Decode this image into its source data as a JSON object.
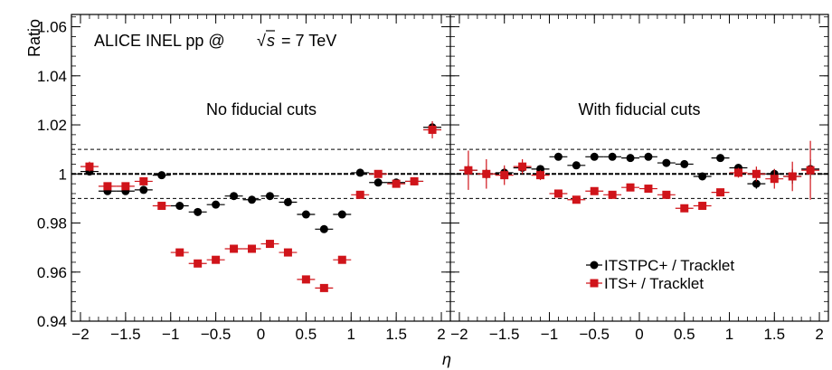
{
  "chart_data": {
    "type": "scatter",
    "header": {
      "text_before": "ALICE INEL pp @",
      "sqrt_symbol": "√",
      "sqrt_arg": "s",
      "text_after": "= 7 TeV"
    },
    "ylabel": "Ratio",
    "xlabel": "η",
    "ylim": [
      0.94,
      1.065
    ],
    "xlim": [
      -2.1,
      2.1
    ],
    "y_ticks": [
      0.94,
      0.96,
      0.98,
      1,
      1.02,
      1.04,
      1.06
    ],
    "y_tick_labels": [
      "0.94",
      "0.96",
      "0.98",
      "1",
      "1.02",
      "1.04",
      "1.06"
    ],
    "x_ticks": [
      -2,
      -1.5,
      -1,
      -0.5,
      0,
      0.5,
      1,
      1.5,
      2
    ],
    "x_tick_labels": [
      "−2",
      "−1.5",
      "−1",
      "−0.5",
      "0",
      "0.5",
      "1",
      "1.5",
      "2"
    ],
    "reference_line": 1.0,
    "band_lines": [
      0.99,
      1.01
    ],
    "grid": false,
    "legend": {
      "placement": "bottom-right of right panel",
      "entries": [
        {
          "label": "ITSTPC+ / Tracklet",
          "color": "#000000",
          "marker": "circle"
        },
        {
          "label": "ITS+ / Tracklet",
          "color": "#d0141a",
          "marker": "square"
        }
      ]
    },
    "panels": [
      {
        "label": "No fiducial cuts",
        "series": [
          {
            "name": "ITSTPC+ / Tracklet",
            "color": "#000000",
            "marker": "circle",
            "x": [
              -1.9,
              -1.7,
              -1.5,
              -1.3,
              -1.1,
              -0.9,
              -0.7,
              -0.5,
              -0.3,
              -0.1,
              0.1,
              0.3,
              0.5,
              0.7,
              0.9,
              1.1,
              1.3,
              1.5,
              1.7,
              1.9
            ],
            "y": [
              1.001,
              0.993,
              0.993,
              0.9935,
              0.9995,
              0.987,
              0.9845,
              0.9875,
              0.991,
              0.9895,
              0.991,
              0.9885,
              0.9835,
              0.9775,
              0.9835,
              1.0005,
              0.9965,
              0.9965,
              0.997,
              1.019
            ],
            "yerr": [
              0.0015,
              0.001,
              0.001,
              0.001,
              0.0008,
              0.0008,
              0.0008,
              0.0008,
              0.0008,
              0.0008,
              0.0008,
              0.0008,
              0.0008,
              0.0008,
              0.0008,
              0.0008,
              0.001,
              0.001,
              0.001,
              0.0015
            ]
          },
          {
            "name": "ITS+ / Tracklet",
            "color": "#d0141a",
            "marker": "square",
            "x": [
              -1.9,
              -1.7,
              -1.5,
              -1.3,
              -1.1,
              -0.9,
              -0.7,
              -0.5,
              -0.3,
              -0.1,
              0.1,
              0.3,
              0.5,
              0.7,
              0.9,
              1.1,
              1.3,
              1.5,
              1.7,
              1.9
            ],
            "y": [
              1.003,
              0.995,
              0.995,
              0.997,
              0.987,
              0.968,
              0.9635,
              0.965,
              0.9695,
              0.9695,
              0.9715,
              0.968,
              0.957,
              0.9535,
              0.965,
              0.9915,
              1.0,
              0.996,
              0.997,
              1.018
            ],
            "yerr": [
              0.002,
              0.001,
              0.001,
              0.001,
              0.0008,
              0.0008,
              0.0008,
              0.0008,
              0.0008,
              0.0008,
              0.0008,
              0.0008,
              0.0008,
              0.0008,
              0.0008,
              0.0008,
              0.001,
              0.001,
              0.001,
              0.0035
            ]
          }
        ]
      },
      {
        "label": "With fiducial cuts",
        "series": [
          {
            "name": "ITSTPC+ / Tracklet",
            "color": "#000000",
            "marker": "circle",
            "x": [
              -1.9,
              -1.7,
              -1.5,
              -1.3,
              -1.1,
              -0.9,
              -0.7,
              -0.5,
              -0.3,
              -0.1,
              0.1,
              0.3,
              0.5,
              0.7,
              0.9,
              1.1,
              1.3,
              1.5,
              1.7,
              1.9
            ],
            "y": [
              1.0015,
              1.0,
              1.0005,
              1.0025,
              1.002,
              1.007,
              1.0035,
              1.007,
              1.007,
              1.0065,
              1.007,
              1.0045,
              1.004,
              0.999,
              1.0065,
              1.0025,
              0.996,
              1.0,
              0.999,
              1.002
            ],
            "yerr": [
              0.002,
              0.002,
              0.002,
              0.0015,
              0.0012,
              0.0012,
              0.0012,
              0.0012,
              0.0012,
              0.0012,
              0.0012,
              0.0012,
              0.0012,
              0.0012,
              0.0012,
              0.0012,
              0.002,
              0.002,
              0.003,
              0.004
            ]
          },
          {
            "name": "ITS+ / Tracklet",
            "color": "#d0141a",
            "marker": "square",
            "x": [
              -1.9,
              -1.7,
              -1.5,
              -1.3,
              -1.1,
              -0.9,
              -0.7,
              -0.5,
              -0.3,
              -0.1,
              0.1,
              0.3,
              0.5,
              0.7,
              0.9,
              1.1,
              1.3,
              1.5,
              1.7,
              1.9
            ],
            "y": [
              1.0015,
              1.0,
              0.9995,
              1.003,
              0.9995,
              0.992,
              0.9895,
              0.993,
              0.9915,
              0.9945,
              0.994,
              0.9915,
              0.986,
              0.987,
              0.9925,
              1.0005,
              1.0,
              0.998,
              0.999,
              1.0015
            ],
            "yerr": [
              0.008,
              0.006,
              0.004,
              0.003,
              0.002,
              0.0015,
              0.0015,
              0.0012,
              0.0012,
              0.0012,
              0.0012,
              0.0012,
              0.0015,
              0.0015,
              0.0015,
              0.002,
              0.003,
              0.004,
              0.006,
              0.012
            ]
          }
        ]
      }
    ]
  }
}
